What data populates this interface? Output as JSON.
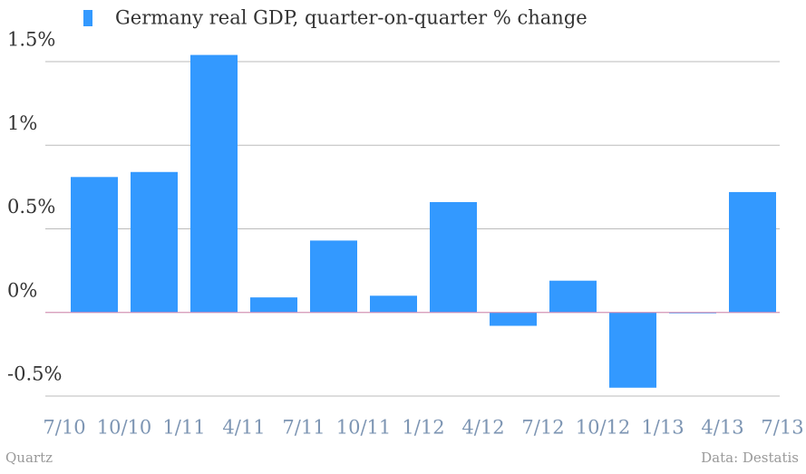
{
  "chart_data": {
    "type": "bar",
    "legend_label": "Germany real GDP, quarter-on-quarter % change",
    "categories": [
      "7/10",
      "10/10",
      "1/11",
      "4/11",
      "7/11",
      "10/11",
      "1/12",
      "4/12",
      "7/12",
      "10/12",
      "1/13",
      "4/13",
      "7/13"
    ],
    "values": [
      0.81,
      0.84,
      1.54,
      0.09,
      0.43,
      0.1,
      0.66,
      -0.08,
      0.19,
      -0.45,
      0.0,
      0.72,
      null
    ],
    "color": "#3399ff",
    "ylim": [
      -0.5,
      1.5
    ],
    "yticks": [
      {
        "value": -0.5,
        "label": "-0.5%"
      },
      {
        "value": 0,
        "label": "0%"
      },
      {
        "value": 0.5,
        "label": "0.5%"
      },
      {
        "value": 1,
        "label": "1%"
      },
      {
        "value": 1.5,
        "label": "1.5%"
      }
    ],
    "grid": true,
    "source_left": "Quartz",
    "source_right": "Data: Destatis"
  }
}
